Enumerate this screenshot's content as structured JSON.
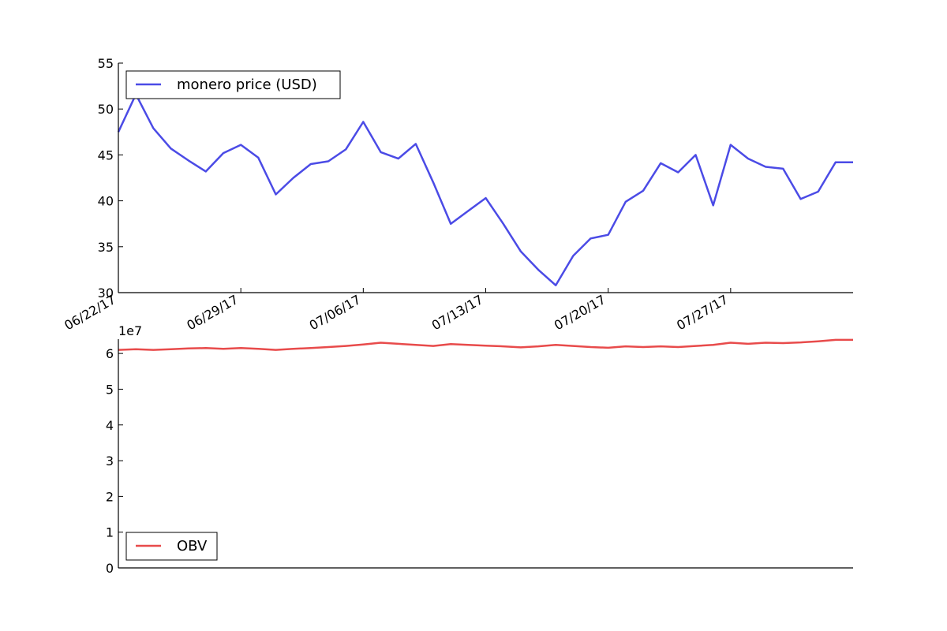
{
  "chart_data": [
    {
      "type": "line",
      "title": "",
      "xlabel": "",
      "ylabel": "",
      "x": [
        "2017-06-22",
        "2017-06-23",
        "2017-06-24",
        "2017-06-25",
        "2017-06-26",
        "2017-06-27",
        "2017-06-28",
        "2017-06-29",
        "2017-06-30",
        "2017-07-01",
        "2017-07-02",
        "2017-07-03",
        "2017-07-04",
        "2017-07-05",
        "2017-07-06",
        "2017-07-07",
        "2017-07-08",
        "2017-07-09",
        "2017-07-10",
        "2017-07-11",
        "2017-07-12",
        "2017-07-13",
        "2017-07-14",
        "2017-07-15",
        "2017-07-16",
        "2017-07-17",
        "2017-07-18",
        "2017-07-19",
        "2017-07-20",
        "2017-07-21",
        "2017-07-22",
        "2017-07-23",
        "2017-07-24",
        "2017-07-25",
        "2017-07-26",
        "2017-07-27",
        "2017-07-28",
        "2017-07-29",
        "2017-07-30",
        "2017-07-31",
        "2017-08-01",
        "2017-08-02",
        "2017-08-03"
      ],
      "xticks": [
        "06/22/17",
        "06/29/17",
        "07/06/17",
        "07/13/17",
        "07/20/17",
        "07/27/17"
      ],
      "ylim": [
        30,
        55
      ],
      "yticks": [
        "30",
        "35",
        "40",
        "45",
        "50",
        "55"
      ],
      "grid": false,
      "legend_position": "top-left",
      "series": [
        {
          "name": "monero price (USD)",
          "color": "#4b4be6",
          "values": [
            47.5,
            51.6,
            47.9,
            45.7,
            44.4,
            43.2,
            45.2,
            46.1,
            44.7,
            40.7,
            42.5,
            44.0,
            44.3,
            45.6,
            48.6,
            45.3,
            44.6,
            46.2,
            42.0,
            37.5,
            38.9,
            40.3,
            37.5,
            34.5,
            32.5,
            30.8,
            34.0,
            35.9,
            36.3,
            39.9,
            41.1,
            44.1,
            43.1,
            45.0,
            39.5,
            46.1,
            44.6,
            43.7,
            43.5,
            40.2,
            41.0,
            44.2,
            44.2
          ]
        }
      ]
    },
    {
      "type": "line",
      "title": "",
      "xlabel": "",
      "ylabel": "",
      "x": [
        "2017-06-22",
        "2017-06-23",
        "2017-06-24",
        "2017-06-25",
        "2017-06-26",
        "2017-06-27",
        "2017-06-28",
        "2017-06-29",
        "2017-06-30",
        "2017-07-01",
        "2017-07-02",
        "2017-07-03",
        "2017-07-04",
        "2017-07-05",
        "2017-07-06",
        "2017-07-07",
        "2017-07-08",
        "2017-07-09",
        "2017-07-10",
        "2017-07-11",
        "2017-07-12",
        "2017-07-13",
        "2017-07-14",
        "2017-07-15",
        "2017-07-16",
        "2017-07-17",
        "2017-07-18",
        "2017-07-19",
        "2017-07-20",
        "2017-07-21",
        "2017-07-22",
        "2017-07-23",
        "2017-07-24",
        "2017-07-25",
        "2017-07-26",
        "2017-07-27",
        "2017-07-28",
        "2017-07-29",
        "2017-07-30",
        "2017-07-31",
        "2017-08-01",
        "2017-08-02",
        "2017-08-03"
      ],
      "ylim": [
        0,
        64000000
      ],
      "yticks": [
        "0",
        "1",
        "2",
        "3",
        "4",
        "5",
        "6"
      ],
      "y_multiplier_label": "1e7",
      "grid": false,
      "legend_position": "bottom-left",
      "series": [
        {
          "name": "OBV",
          "color": "#e84b4b",
          "values": [
            61000000,
            61200000,
            61000000,
            61200000,
            61400000,
            61500000,
            61300000,
            61500000,
            61300000,
            61000000,
            61300000,
            61500000,
            61800000,
            62100000,
            62500000,
            63000000,
            62700000,
            62400000,
            62100000,
            62600000,
            62400000,
            62200000,
            62000000,
            61700000,
            62000000,
            62400000,
            62100000,
            61800000,
            61600000,
            62000000,
            61800000,
            62000000,
            61800000,
            62100000,
            62400000,
            63000000,
            62700000,
            63000000,
            62900000,
            63100000,
            63400000,
            63800000,
            63800000
          ]
        }
      ]
    }
  ]
}
